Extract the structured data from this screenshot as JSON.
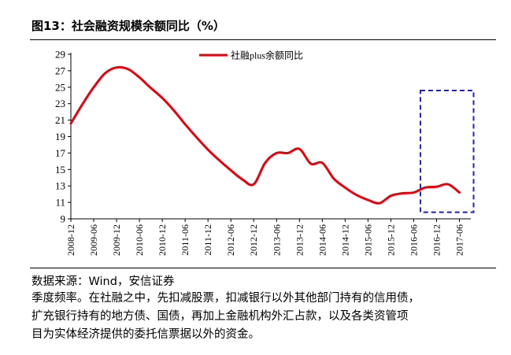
{
  "figure": {
    "title": "图13：社会融资规模余额同比（%）",
    "source": "数据来源：Wind，安信证券",
    "notes": [
      "季度频率。在社融之中，先扣减股票，扣减银行以外其他部门持有的信用债，",
      "扩充银行持有的地方债、国债，再加上金融机构外汇占款，以及各类资管项",
      "目为实体经济提供的委托信票据以外的资金。"
    ]
  },
  "chart_data": {
    "type": "line",
    "title": "",
    "xlabel": "",
    "ylabel": "",
    "ylim": [
      9,
      29
    ],
    "yticks": [
      9,
      11,
      13,
      15,
      17,
      19,
      21,
      23,
      25,
      27,
      29
    ],
    "xtick_labels": [
      "2008-12",
      "2009-06",
      "2009-12",
      "2010-06",
      "2010-12",
      "2011-06",
      "2011-12",
      "2012-06",
      "2012-12",
      "2013-06",
      "2013-12",
      "2014-06",
      "2014-12",
      "2015-06",
      "2015-12",
      "2016-06",
      "2016-12",
      "2017-06"
    ],
    "legend": {
      "position": "top-center",
      "label": "社融plus余额同比"
    },
    "series": [
      {
        "name": "社融plus余额同比",
        "color": "#e8000b",
        "x": [
          "2008-12",
          "2009-03",
          "2009-06",
          "2009-09",
          "2009-12",
          "2010-03",
          "2010-06",
          "2010-09",
          "2010-12",
          "2011-03",
          "2011-06",
          "2011-09",
          "2011-12",
          "2012-03",
          "2012-06",
          "2012-09",
          "2012-12",
          "2013-03",
          "2013-06",
          "2013-09",
          "2013-12",
          "2014-03",
          "2014-06",
          "2014-09",
          "2014-12",
          "2015-03",
          "2015-06",
          "2015-09",
          "2015-12",
          "2016-03",
          "2016-06",
          "2016-09",
          "2016-12",
          "2017-03",
          "2017-06"
        ],
        "values": [
          20.6,
          22.9,
          25.0,
          26.7,
          27.4,
          27.2,
          26.2,
          24.9,
          23.7,
          22.2,
          20.5,
          18.9,
          17.4,
          16.1,
          14.9,
          13.8,
          13.2,
          15.8,
          17.0,
          17.0,
          17.5,
          15.7,
          15.8,
          13.9,
          12.8,
          11.9,
          11.3,
          10.9,
          11.8,
          12.1,
          12.2,
          12.8,
          12.9,
          13.2,
          12.2
        ]
      }
    ],
    "highlight_box": {
      "x_from": "2016-09",
      "x_to": "2017-06",
      "y_from": 9.8,
      "y_to": 24.6,
      "color": "#1f1fd6",
      "style": "dashed"
    },
    "grid": false
  }
}
